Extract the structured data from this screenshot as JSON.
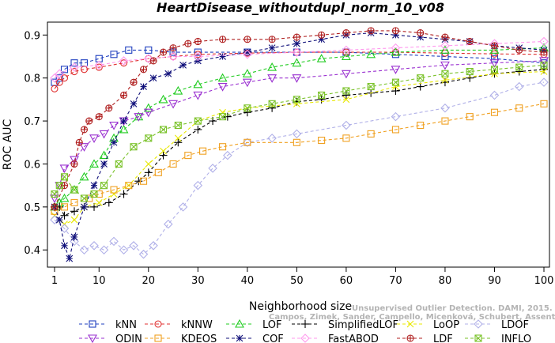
{
  "chart_data": {
    "type": "line",
    "title": "HeartDisease_withoutdupl_norm_10_v08",
    "xlabel": "Neighborhood size",
    "ylabel": "ROC AUC",
    "xlim": [
      1,
      100
    ],
    "ylim": [
      0.36,
      0.93
    ],
    "x_ticks": [
      "1",
      "10",
      "20",
      "30",
      "40",
      "50",
      "60",
      "70",
      "80",
      "90",
      "100"
    ],
    "y_ticks": [
      "0.4",
      "0.5",
      "0.6",
      "0.7",
      "0.8",
      "0.9"
    ],
    "grid": false,
    "legend_position": "bottom",
    "watermark": [
      "Unsupervised Outlier Detection. DAMI, 2015.",
      "Campos, Zimek, Sander, Campello, Micenková, Schubert, Assent, Houle"
    ],
    "series": [
      {
        "name": "kNN",
        "color": "#1f3fbf",
        "marker": "square",
        "points": [
          [
            1,
            0.79
          ],
          [
            2,
            0.8
          ],
          [
            3,
            0.82
          ],
          [
            5,
            0.835
          ],
          [
            7,
            0.835
          ],
          [
            10,
            0.845
          ],
          [
            13,
            0.855
          ],
          [
            16,
            0.865
          ],
          [
            20,
            0.865
          ],
          [
            25,
            0.86
          ],
          [
            30,
            0.86
          ],
          [
            40,
            0.86
          ],
          [
            50,
            0.86
          ],
          [
            60,
            0.86
          ],
          [
            70,
            0.855
          ],
          [
            80,
            0.85
          ],
          [
            90,
            0.845
          ],
          [
            100,
            0.835
          ]
        ]
      },
      {
        "name": "kNNW",
        "color": "#e03030",
        "marker": "circle",
        "points": [
          [
            1,
            0.775
          ],
          [
            2,
            0.79
          ],
          [
            3,
            0.8
          ],
          [
            5,
            0.815
          ],
          [
            7,
            0.82
          ],
          [
            10,
            0.825
          ],
          [
            15,
            0.835
          ],
          [
            20,
            0.845
          ],
          [
            25,
            0.85
          ],
          [
            30,
            0.855
          ],
          [
            40,
            0.858
          ],
          [
            50,
            0.86
          ],
          [
            60,
            0.86
          ],
          [
            70,
            0.86
          ],
          [
            80,
            0.858
          ],
          [
            90,
            0.856
          ],
          [
            100,
            0.855
          ]
        ]
      },
      {
        "name": "LOF",
        "color": "#22cc22",
        "marker": "triangle",
        "points": [
          [
            1,
            0.5
          ],
          [
            2,
            0.51
          ],
          [
            3,
            0.52
          ],
          [
            5,
            0.54
          ],
          [
            7,
            0.57
          ],
          [
            9,
            0.6
          ],
          [
            11,
            0.62
          ],
          [
            13,
            0.66
          ],
          [
            15,
            0.68
          ],
          [
            18,
            0.71
          ],
          [
            20,
            0.73
          ],
          [
            23,
            0.75
          ],
          [
            26,
            0.77
          ],
          [
            30,
            0.785
          ],
          [
            35,
            0.8
          ],
          [
            40,
            0.81
          ],
          [
            45,
            0.825
          ],
          [
            50,
            0.835
          ],
          [
            55,
            0.845
          ],
          [
            60,
            0.85
          ],
          [
            65,
            0.855
          ],
          [
            70,
            0.86
          ],
          [
            80,
            0.865
          ],
          [
            90,
            0.865
          ],
          [
            100,
            0.87
          ]
        ]
      },
      {
        "name": "SimplifiedLOF",
        "color": "#000000",
        "marker": "plus",
        "points": [
          [
            1,
            0.5
          ],
          [
            2,
            0.5
          ],
          [
            3,
            0.48
          ],
          [
            5,
            0.49
          ],
          [
            7,
            0.5
          ],
          [
            9,
            0.5
          ],
          [
            12,
            0.51
          ],
          [
            15,
            0.53
          ],
          [
            18,
            0.56
          ],
          [
            20,
            0.58
          ],
          [
            23,
            0.62
          ],
          [
            26,
            0.65
          ],
          [
            30,
            0.68
          ],
          [
            33,
            0.7
          ],
          [
            36,
            0.71
          ],
          [
            40,
            0.72
          ],
          [
            45,
            0.73
          ],
          [
            50,
            0.745
          ],
          [
            55,
            0.75
          ],
          [
            60,
            0.76
          ],
          [
            65,
            0.765
          ],
          [
            70,
            0.77
          ],
          [
            75,
            0.78
          ],
          [
            80,
            0.79
          ],
          [
            85,
            0.8
          ],
          [
            90,
            0.81
          ],
          [
            95,
            0.815
          ],
          [
            100,
            0.82
          ]
        ]
      },
      {
        "name": "LoOP",
        "color": "#e8e800",
        "marker": "x",
        "points": [
          [
            1,
            0.48
          ],
          [
            2,
            0.47
          ],
          [
            3,
            0.46
          ],
          [
            5,
            0.47
          ],
          [
            7,
            0.5
          ],
          [
            10,
            0.51
          ],
          [
            13,
            0.53
          ],
          [
            16,
            0.55
          ],
          [
            20,
            0.6
          ],
          [
            23,
            0.63
          ],
          [
            26,
            0.66
          ],
          [
            30,
            0.7
          ],
          [
            35,
            0.72
          ],
          [
            40,
            0.73
          ],
          [
            50,
            0.74
          ],
          [
            60,
            0.75
          ],
          [
            70,
            0.78
          ],
          [
            80,
            0.795
          ],
          [
            90,
            0.81
          ],
          [
            100,
            0.815
          ]
        ]
      },
      {
        "name": "LDOF",
        "color": "#b0b0e8",
        "marker": "diamond",
        "points": [
          [
            1,
            0.47
          ],
          [
            3,
            0.45
          ],
          [
            5,
            0.42
          ],
          [
            7,
            0.4
          ],
          [
            9,
            0.41
          ],
          [
            11,
            0.4
          ],
          [
            13,
            0.42
          ],
          [
            15,
            0.4
          ],
          [
            17,
            0.41
          ],
          [
            19,
            0.39
          ],
          [
            21,
            0.41
          ],
          [
            24,
            0.46
          ],
          [
            27,
            0.5
          ],
          [
            30,
            0.55
          ],
          [
            33,
            0.59
          ],
          [
            36,
            0.62
          ],
          [
            40,
            0.65
          ],
          [
            45,
            0.66
          ],
          [
            50,
            0.67
          ],
          [
            60,
            0.69
          ],
          [
            70,
            0.71
          ],
          [
            80,
            0.73
          ],
          [
            90,
            0.76
          ],
          [
            95,
            0.78
          ],
          [
            100,
            0.79
          ]
        ]
      },
      {
        "name": "ODIN",
        "color": "#9a30d0",
        "marker": "triangle-down",
        "points": [
          [
            1,
            0.52
          ],
          [
            2,
            0.55
          ],
          [
            3,
            0.59
          ],
          [
            5,
            0.61
          ],
          [
            7,
            0.64
          ],
          [
            9,
            0.66
          ],
          [
            11,
            0.67
          ],
          [
            13,
            0.69
          ],
          [
            15,
            0.7
          ],
          [
            18,
            0.71
          ],
          [
            20,
            0.72
          ],
          [
            25,
            0.74
          ],
          [
            30,
            0.76
          ],
          [
            35,
            0.78
          ],
          [
            40,
            0.79
          ],
          [
            45,
            0.8
          ],
          [
            50,
            0.8
          ],
          [
            60,
            0.81
          ],
          [
            70,
            0.82
          ],
          [
            80,
            0.83
          ],
          [
            90,
            0.835
          ],
          [
            100,
            0.84
          ]
        ]
      },
      {
        "name": "KDEOS",
        "color": "#f0a020",
        "marker": "square",
        "points": [
          [
            1,
            0.49
          ],
          [
            3,
            0.5
          ],
          [
            5,
            0.51
          ],
          [
            8,
            0.52
          ],
          [
            10,
            0.53
          ],
          [
            13,
            0.54
          ],
          [
            16,
            0.55
          ],
          [
            19,
            0.56
          ],
          [
            22,
            0.58
          ],
          [
            25,
            0.6
          ],
          [
            28,
            0.62
          ],
          [
            31,
            0.63
          ],
          [
            35,
            0.64
          ],
          [
            40,
            0.65
          ],
          [
            50,
            0.65
          ],
          [
            55,
            0.655
          ],
          [
            60,
            0.66
          ],
          [
            65,
            0.67
          ],
          [
            70,
            0.68
          ],
          [
            75,
            0.69
          ],
          [
            80,
            0.7
          ],
          [
            85,
            0.71
          ],
          [
            90,
            0.72
          ],
          [
            95,
            0.73
          ],
          [
            100,
            0.74
          ]
        ]
      },
      {
        "name": "COF",
        "color": "#10107a",
        "marker": "asterisk",
        "points": [
          [
            1,
            0.5
          ],
          [
            2,
            0.47
          ],
          [
            3,
            0.41
          ],
          [
            4,
            0.38
          ],
          [
            5,
            0.43
          ],
          [
            7,
            0.5
          ],
          [
            9,
            0.55
          ],
          [
            11,
            0.6
          ],
          [
            13,
            0.65
          ],
          [
            15,
            0.7
          ],
          [
            17,
            0.74
          ],
          [
            19,
            0.78
          ],
          [
            21,
            0.8
          ],
          [
            24,
            0.81
          ],
          [
            27,
            0.83
          ],
          [
            30,
            0.84
          ],
          [
            35,
            0.85
          ],
          [
            40,
            0.86
          ],
          [
            45,
            0.87
          ],
          [
            50,
            0.88
          ],
          [
            55,
            0.89
          ],
          [
            60,
            0.9
          ],
          [
            65,
            0.905
          ],
          [
            70,
            0.9
          ],
          [
            75,
            0.895
          ],
          [
            80,
            0.89
          ],
          [
            85,
            0.885
          ],
          [
            90,
            0.875
          ],
          [
            95,
            0.87
          ],
          [
            100,
            0.865
          ]
        ]
      },
      {
        "name": "FastABOD",
        "color": "#ff99ee",
        "marker": "diamond",
        "points": [
          [
            1,
            0.8
          ],
          [
            2,
            0.81
          ],
          [
            5,
            0.825
          ],
          [
            10,
            0.83
          ],
          [
            15,
            0.84
          ],
          [
            20,
            0.845
          ],
          [
            25,
            0.85
          ],
          [
            30,
            0.85
          ],
          [
            40,
            0.855
          ],
          [
            50,
            0.86
          ],
          [
            60,
            0.865
          ],
          [
            70,
            0.87
          ],
          [
            80,
            0.875
          ],
          [
            90,
            0.88
          ],
          [
            100,
            0.885
          ]
        ]
      },
      {
        "name": "LDF",
        "color": "#b02020",
        "marker": "circle-plus",
        "points": [
          [
            1,
            0.5
          ],
          [
            3,
            0.55
          ],
          [
            5,
            0.6
          ],
          [
            6,
            0.65
          ],
          [
            7,
            0.68
          ],
          [
            8,
            0.7
          ],
          [
            10,
            0.71
          ],
          [
            12,
            0.73
          ],
          [
            15,
            0.76
          ],
          [
            17,
            0.79
          ],
          [
            19,
            0.82
          ],
          [
            21,
            0.84
          ],
          [
            23,
            0.86
          ],
          [
            25,
            0.87
          ],
          [
            28,
            0.88
          ],
          [
            30,
            0.885
          ],
          [
            35,
            0.89
          ],
          [
            40,
            0.89
          ],
          [
            45,
            0.89
          ],
          [
            50,
            0.895
          ],
          [
            55,
            0.9
          ],
          [
            60,
            0.905
          ],
          [
            65,
            0.91
          ],
          [
            70,
            0.91
          ],
          [
            75,
            0.905
          ],
          [
            80,
            0.895
          ],
          [
            85,
            0.885
          ],
          [
            90,
            0.875
          ],
          [
            95,
            0.865
          ],
          [
            100,
            0.86
          ]
        ]
      },
      {
        "name": "INFLO",
        "color": "#7ac22a",
        "marker": "hourglass",
        "points": [
          [
            1,
            0.53
          ],
          [
            2,
            0.55
          ],
          [
            3,
            0.57
          ],
          [
            5,
            0.54
          ],
          [
            7,
            0.52
          ],
          [
            9,
            0.53
          ],
          [
            11,
            0.55
          ],
          [
            14,
            0.6
          ],
          [
            17,
            0.64
          ],
          [
            20,
            0.66
          ],
          [
            23,
            0.68
          ],
          [
            26,
            0.69
          ],
          [
            30,
            0.7
          ],
          [
            35,
            0.71
          ],
          [
            40,
            0.73
          ],
          [
            45,
            0.74
          ],
          [
            50,
            0.75
          ],
          [
            55,
            0.76
          ],
          [
            60,
            0.77
          ],
          [
            65,
            0.78
          ],
          [
            70,
            0.79
          ],
          [
            75,
            0.8
          ],
          [
            80,
            0.81
          ],
          [
            85,
            0.815
          ],
          [
            90,
            0.82
          ],
          [
            95,
            0.825
          ],
          [
            100,
            0.83
          ]
        ]
      }
    ]
  }
}
